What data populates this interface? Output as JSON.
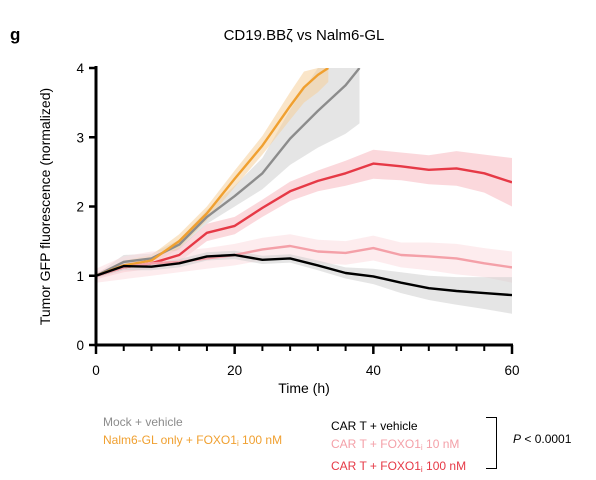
{
  "chart_data": {
    "type": "line",
    "panel_letter": "g",
    "title": "CD19.BBζ vs Nalm6-GL",
    "xlabel": "Time (h)",
    "ylabel": "Tumor GFP fluorescence (normalized)",
    "xlim": [
      0,
      60
    ],
    "ylim": [
      0,
      4
    ],
    "x_ticks": [
      0,
      20,
      40,
      60
    ],
    "y_ticks": [
      0,
      1,
      2,
      3,
      4
    ],
    "x_minor_ticks": [
      4,
      8,
      12,
      16,
      24,
      28,
      32,
      36,
      44,
      48,
      52,
      56
    ],
    "grid": false,
    "series": [
      {
        "name": "Mock + vehicle",
        "color": "#8c8c8c",
        "band_color": "#d0d0d0",
        "x": [
          0,
          4,
          8,
          12,
          16,
          20,
          24,
          28,
          32,
          36,
          38
        ],
        "y": [
          1.0,
          1.2,
          1.25,
          1.45,
          1.85,
          2.15,
          2.48,
          2.98,
          3.38,
          3.75,
          4.0
        ],
        "lower": [
          0.98,
          1.12,
          1.18,
          1.38,
          1.75,
          2.0,
          2.25,
          2.6,
          2.85,
          3.05,
          3.2
        ],
        "upper": [
          1.02,
          1.3,
          1.32,
          1.52,
          1.95,
          2.3,
          2.7,
          3.4,
          4.0,
          4.0,
          4.0
        ]
      },
      {
        "name": "Nalm6-GL only + FOXO1",
        "name_subscript": "i",
        "name_suffix": " 100 nM",
        "color": "#f0a030",
        "band_color": "#f6d09a",
        "x": [
          0,
          4,
          8,
          12,
          16,
          20,
          24,
          28,
          30,
          32,
          33.5
        ],
        "y": [
          1.0,
          1.15,
          1.22,
          1.5,
          1.9,
          2.4,
          2.88,
          3.45,
          3.72,
          3.9,
          4.0
        ],
        "lower": [
          0.98,
          1.1,
          1.15,
          1.4,
          1.8,
          2.28,
          2.75,
          3.25,
          3.5,
          3.65,
          3.8
        ],
        "upper": [
          1.02,
          1.22,
          1.3,
          1.6,
          2.0,
          2.52,
          3.02,
          3.65,
          3.95,
          4.0,
          4.0
        ]
      },
      {
        "name": "CAR T + FOXO1",
        "name_subscript": "i",
        "name_suffix": " 100 nM",
        "color": "#e63946",
        "band_color": "#f7b8bf",
        "x": [
          0,
          4,
          8,
          12,
          16,
          20,
          24,
          28,
          32,
          36,
          40,
          44,
          48,
          52,
          56,
          60
        ],
        "y": [
          1.0,
          1.12,
          1.18,
          1.3,
          1.62,
          1.72,
          1.98,
          2.22,
          2.37,
          2.48,
          2.62,
          2.58,
          2.53,
          2.55,
          2.48,
          2.35
        ],
        "lower": [
          0.95,
          1.05,
          1.1,
          1.2,
          1.5,
          1.6,
          1.85,
          2.08,
          2.22,
          2.3,
          2.4,
          2.38,
          2.32,
          2.3,
          2.2,
          2.0
        ],
        "upper": [
          1.05,
          1.2,
          1.26,
          1.4,
          1.75,
          1.85,
          2.1,
          2.36,
          2.52,
          2.66,
          2.82,
          2.78,
          2.74,
          2.8,
          2.75,
          2.7
        ]
      },
      {
        "name": "CAR T + FOXO1",
        "name_subscript": "i",
        "name_suffix": " 10 nM",
        "color": "#f4a0a8",
        "band_color": "#fbdde0",
        "x": [
          0,
          4,
          8,
          12,
          16,
          20,
          24,
          28,
          32,
          36,
          40,
          44,
          48,
          52,
          56,
          60
        ],
        "y": [
          1.0,
          1.12,
          1.18,
          1.2,
          1.25,
          1.3,
          1.38,
          1.43,
          1.35,
          1.33,
          1.4,
          1.3,
          1.28,
          1.25,
          1.18,
          1.12
        ],
        "lower": [
          0.9,
          0.95,
          1.0,
          1.05,
          1.1,
          1.15,
          1.22,
          1.26,
          1.18,
          1.16,
          1.22,
          1.12,
          1.08,
          1.02,
          0.98,
          0.9
        ],
        "upper": [
          1.1,
          1.28,
          1.35,
          1.36,
          1.4,
          1.46,
          1.55,
          1.6,
          1.52,
          1.5,
          1.58,
          1.48,
          1.48,
          1.46,
          1.4,
          1.35
        ]
      },
      {
        "name": "CAR T + vehicle",
        "color": "#000000",
        "band_color": "#cfcfcf",
        "x": [
          0,
          4,
          8,
          12,
          16,
          20,
          24,
          28,
          32,
          36,
          40,
          44,
          48,
          52,
          56,
          60
        ],
        "y": [
          1.0,
          1.14,
          1.13,
          1.18,
          1.28,
          1.3,
          1.23,
          1.25,
          1.15,
          1.04,
          0.99,
          0.9,
          0.82,
          0.78,
          0.75,
          0.72
        ],
        "lower": [
          0.97,
          1.08,
          1.08,
          1.12,
          1.22,
          1.24,
          1.17,
          1.19,
          1.08,
          0.96,
          0.88,
          0.75,
          0.65,
          0.58,
          0.52,
          0.45
        ],
        "upper": [
          1.03,
          1.2,
          1.18,
          1.24,
          1.34,
          1.36,
          1.29,
          1.31,
          1.22,
          1.12,
          1.1,
          1.05,
          1.0,
          0.98,
          0.98,
          0.98
        ]
      }
    ],
    "legend_left": [
      {
        "series_index": 0
      },
      {
        "series_index": 1
      }
    ],
    "legend_right": [
      {
        "series_index": 4
      },
      {
        "series_index": 3
      },
      {
        "series_index": 2
      }
    ],
    "stat_annotation": {
      "prefix": "P",
      "text": " < 0.0001"
    }
  }
}
